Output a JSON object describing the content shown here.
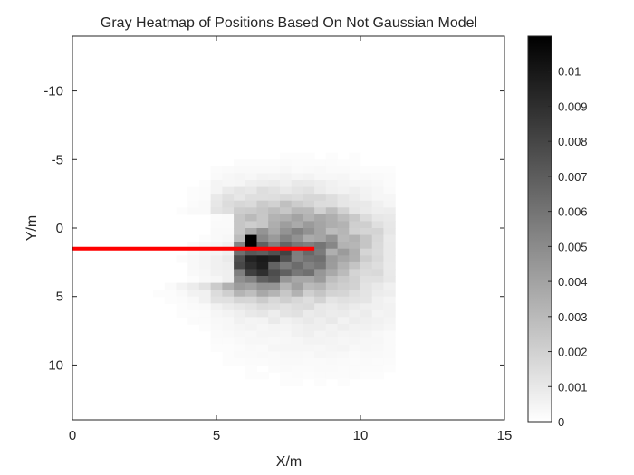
{
  "chart_data": {
    "type": "heatmap",
    "title": "Gray Heatmap of Positions Based On Not Gaussian Model",
    "xlabel": "X/m",
    "ylabel": "Y/m",
    "xlim": [
      0,
      15
    ],
    "ylim": [
      -14,
      14
    ],
    "y_reversed": true,
    "xticks": [
      0,
      5,
      10,
      15
    ],
    "yticks": [
      -10,
      -5,
      0,
      5,
      10
    ],
    "colormap": "gray (white = 0, black = max)",
    "colorbar": {
      "min": 0,
      "max": 0.011,
      "ticks": [
        0,
        0.001,
        0.002,
        0.003,
        0.004,
        0.005,
        0.006,
        0.007,
        0.008,
        0.009,
        0.01
      ],
      "tick_labels": [
        "0",
        "0.001",
        "0.002",
        "0.003",
        "0.004",
        "0.005",
        "0.006",
        "0.007",
        "0.008",
        "0.009",
        "0.01"
      ]
    },
    "heatmap_x_range": [
      0,
      11.2
    ],
    "heatmap_y_range": [
      -7,
      14
    ],
    "peak": {
      "x": 6.3,
      "y": 1.2,
      "value": 0.011
    },
    "line": {
      "x": [
        0,
        8.4
      ],
      "y": [
        1.5,
        1.5
      ],
      "color": "#ff0000"
    },
    "grid": false
  }
}
